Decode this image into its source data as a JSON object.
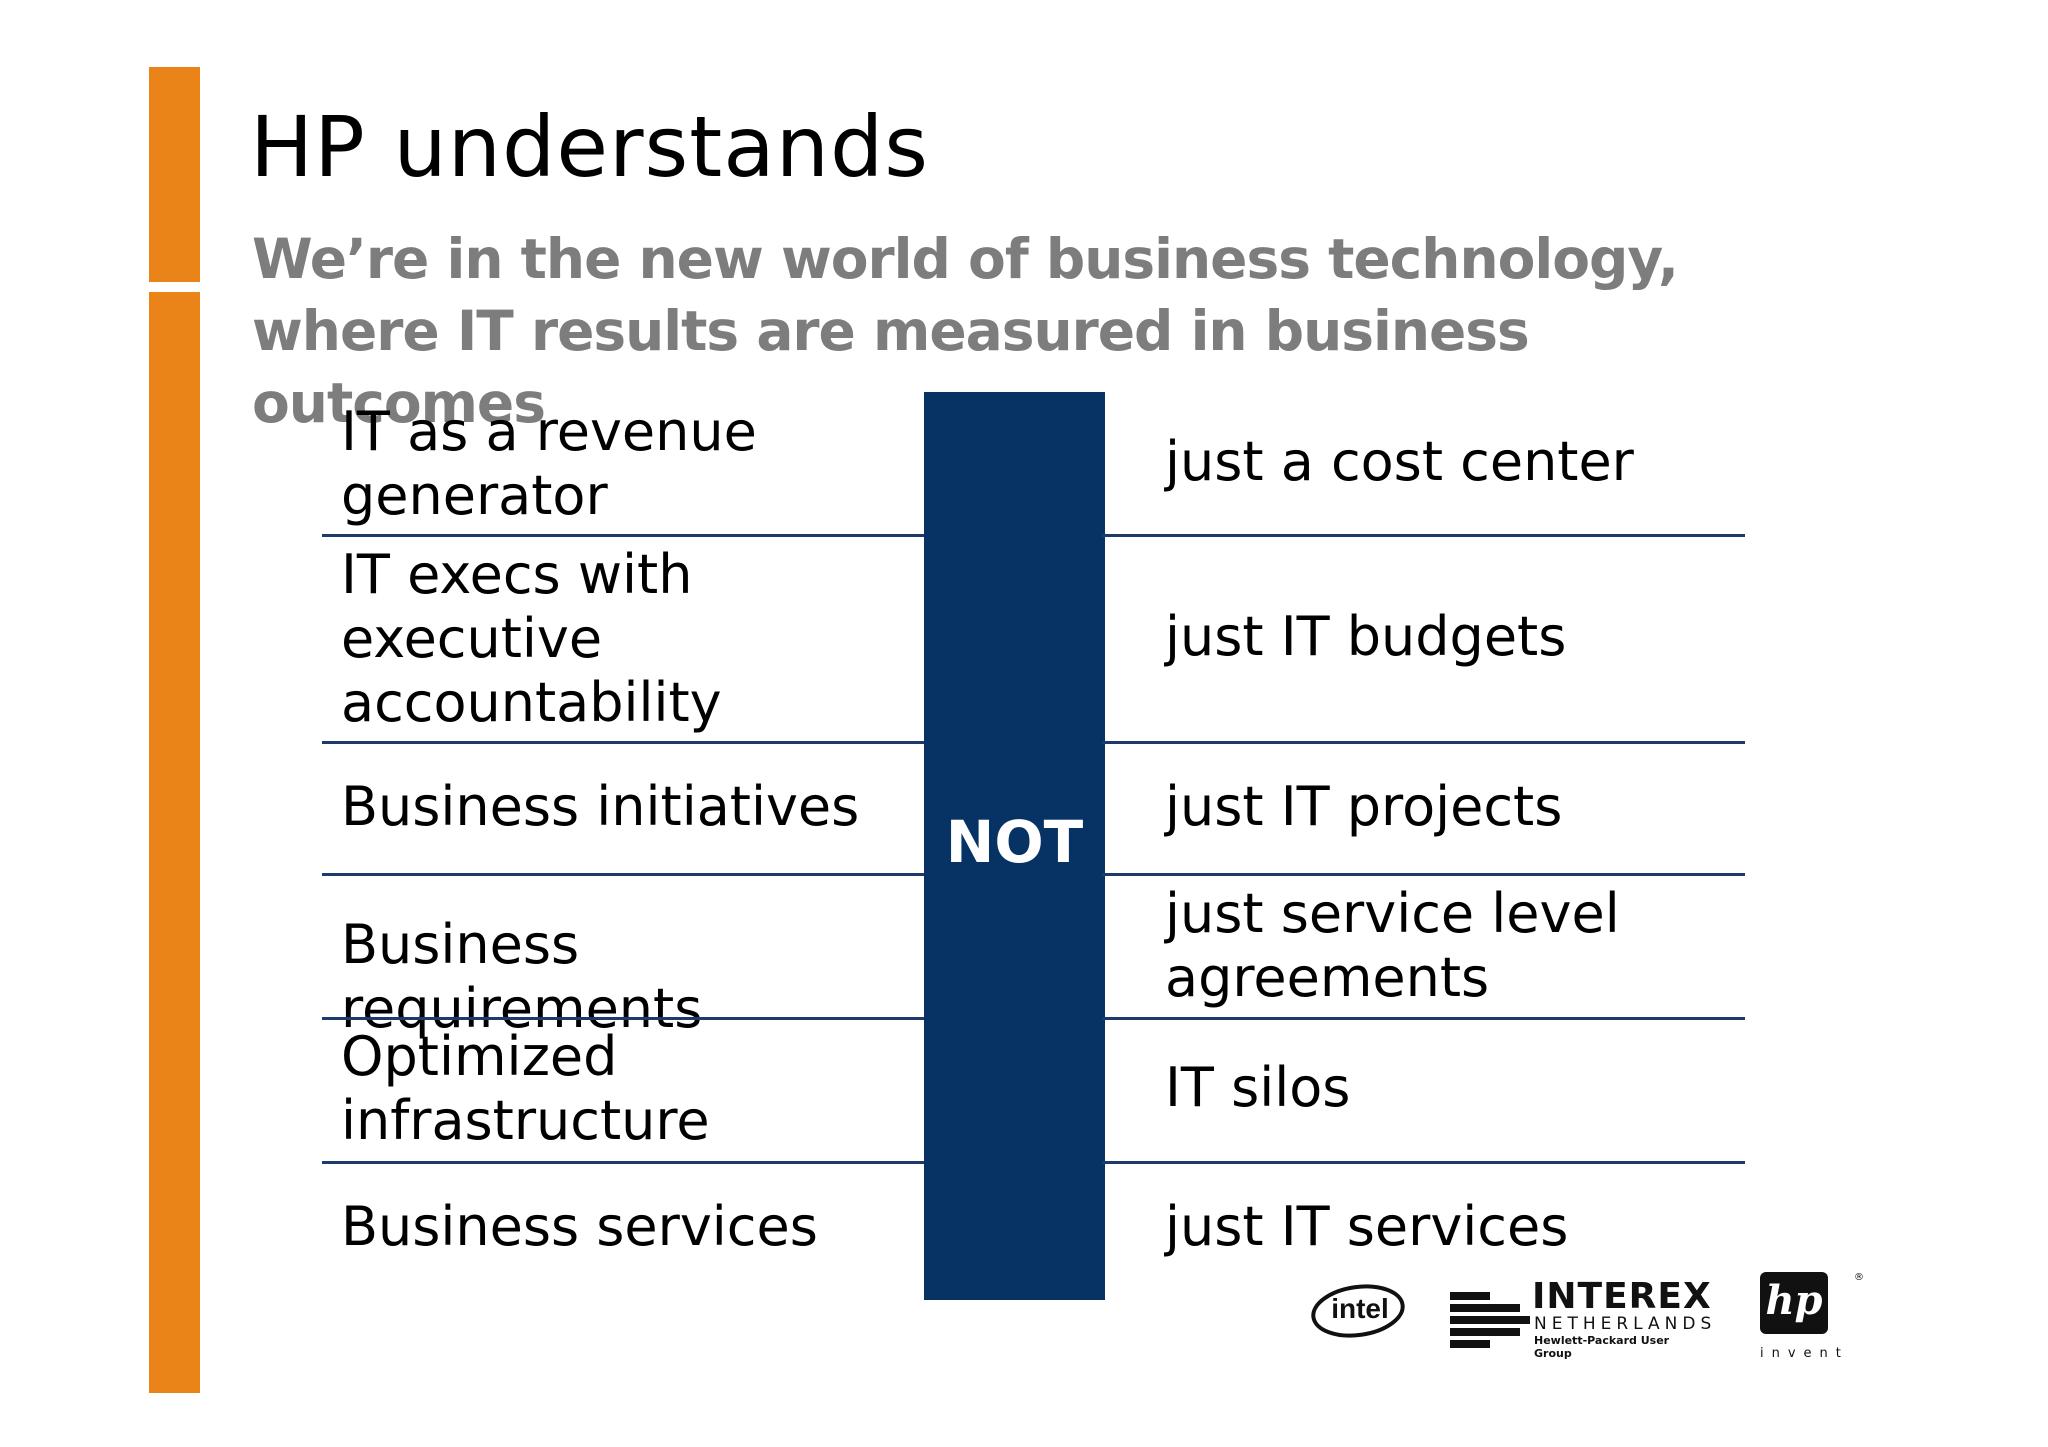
{
  "title": "HP understands",
  "subtitle": "We’re in the new world of business technology, where IT results are measured in business outcomes",
  "divider_label": "NOT",
  "rows": [
    {
      "left": "IT as a revenue generator",
      "right": "just a cost center"
    },
    {
      "left": "IT execs with executive accountability",
      "right": "just IT budgets"
    },
    {
      "left": "Business initiatives",
      "right": "just IT projects"
    },
    {
      "left": "Business requirements",
      "right": "just service level agreements"
    },
    {
      "left": "Optimized infrastructure",
      "right": "IT silos"
    },
    {
      "left": "Business services",
      "right": "just IT services"
    }
  ],
  "logos": {
    "intel": "intel",
    "interex_name": "INTEREX",
    "interex_sub": "NETHERLANDS",
    "interex_tag": "Hewlett-Packard User Group",
    "hp_mark": "hp",
    "hp_tagline": "invent",
    "hp_reg": "®"
  },
  "colors": {
    "accent_orange": "#ea8318",
    "band_navy": "#063364",
    "subtitle_gray": "#7d7d7d"
  }
}
